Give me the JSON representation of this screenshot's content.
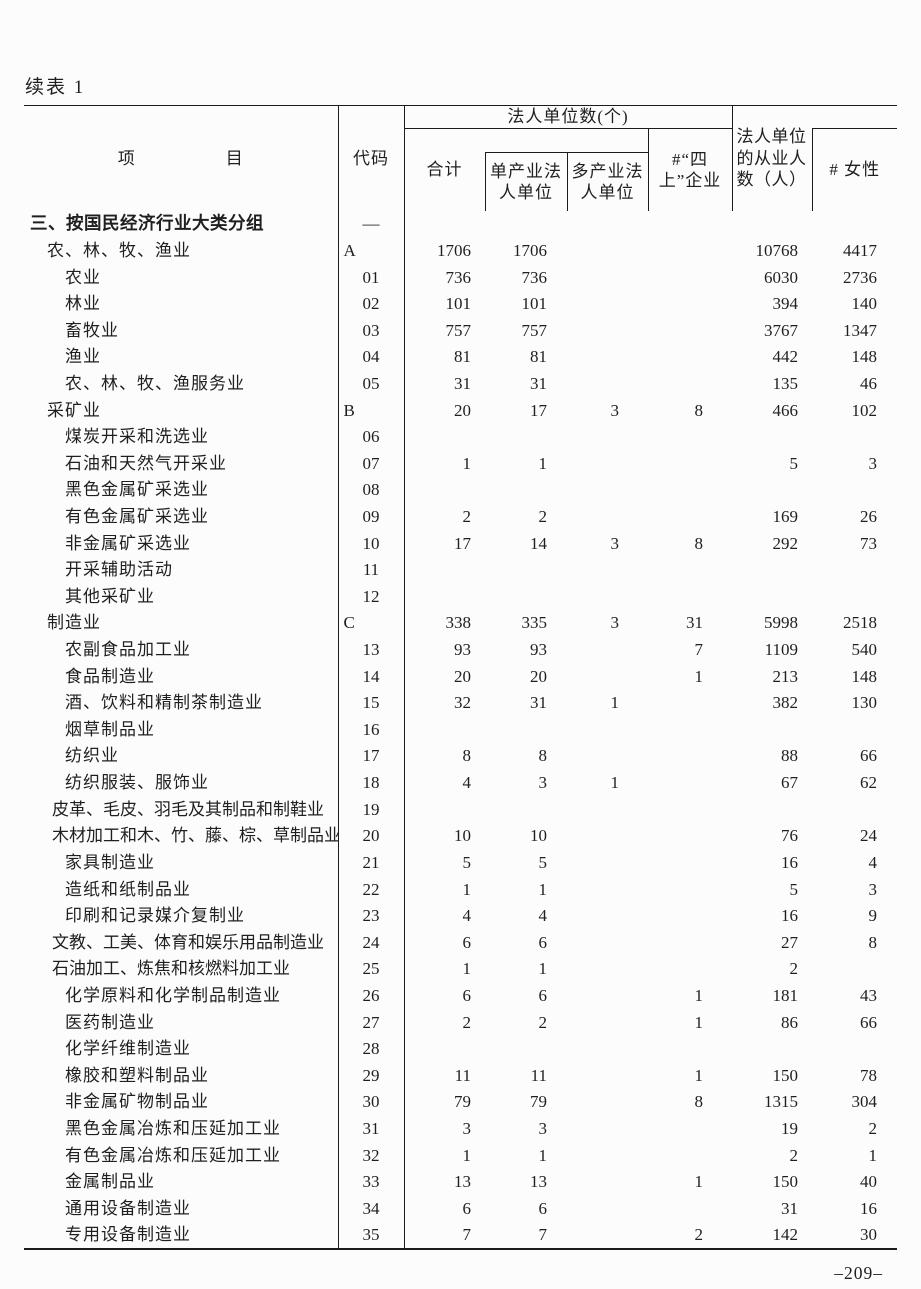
{
  "page": {
    "continued_label": "续表 1",
    "page_number": "–209–"
  },
  "colors": {
    "background": "#fcfcfc",
    "text": "#1f1f1f",
    "border": "#1c1c1c"
  },
  "table": {
    "header": {
      "item": "项　　　　　目",
      "code": "代码",
      "group": "法人单位数(个)",
      "total": "合计",
      "single": "单产业法人单位",
      "multi": "多产业法人单位",
      "four_above": "#“四上”企业",
      "employees": "法人单位的从业人数（人）",
      "female": "# 女性"
    },
    "rows": [
      {
        "label": "三、按国民经济行业大类分组",
        "level": 0,
        "bold": true,
        "long": false,
        "code": "––",
        "code_align": "center",
        "values": [
          "",
          "",
          "",
          "",
          "",
          ""
        ]
      },
      {
        "label": "农、林、牧、渔业",
        "level": 1,
        "bold": false,
        "long": false,
        "code": "A",
        "code_align": "left",
        "values": [
          "1706",
          "1706",
          "",
          "",
          "10768",
          "4417"
        ]
      },
      {
        "label": "农业",
        "level": 2,
        "bold": false,
        "long": false,
        "code": "01",
        "code_align": "center",
        "values": [
          "736",
          "736",
          "",
          "",
          "6030",
          "2736"
        ]
      },
      {
        "label": "林业",
        "level": 2,
        "bold": false,
        "long": false,
        "code": "02",
        "code_align": "center",
        "values": [
          "101",
          "101",
          "",
          "",
          "394",
          "140"
        ]
      },
      {
        "label": "畜牧业",
        "level": 2,
        "bold": false,
        "long": false,
        "code": "03",
        "code_align": "center",
        "values": [
          "757",
          "757",
          "",
          "",
          "3767",
          "1347"
        ]
      },
      {
        "label": "渔业",
        "level": 2,
        "bold": false,
        "long": false,
        "code": "04",
        "code_align": "center",
        "values": [
          "81",
          "81",
          "",
          "",
          "442",
          "148"
        ]
      },
      {
        "label": "农、林、牧、渔服务业",
        "level": 2,
        "bold": false,
        "long": false,
        "code": "05",
        "code_align": "center",
        "values": [
          "31",
          "31",
          "",
          "",
          "135",
          "46"
        ]
      },
      {
        "label": "采矿业",
        "level": 1,
        "bold": false,
        "long": false,
        "code": "B",
        "code_align": "left",
        "values": [
          "20",
          "17",
          "3",
          "8",
          "466",
          "102"
        ]
      },
      {
        "label": "煤炭开采和洗选业",
        "level": 2,
        "bold": false,
        "long": false,
        "code": "06",
        "code_align": "center",
        "values": [
          "",
          "",
          "",
          "",
          "",
          ""
        ]
      },
      {
        "label": "石油和天然气开采业",
        "level": 2,
        "bold": false,
        "long": false,
        "code": "07",
        "code_align": "center",
        "values": [
          "1",
          "1",
          "",
          "",
          "5",
          "3"
        ]
      },
      {
        "label": "黑色金属矿采选业",
        "level": 2,
        "bold": false,
        "long": false,
        "code": "08",
        "code_align": "center",
        "values": [
          "",
          "",
          "",
          "",
          "",
          ""
        ]
      },
      {
        "label": "有色金属矿采选业",
        "level": 2,
        "bold": false,
        "long": false,
        "code": "09",
        "code_align": "center",
        "values": [
          "2",
          "2",
          "",
          "",
          "169",
          "26"
        ]
      },
      {
        "label": "非金属矿采选业",
        "level": 2,
        "bold": false,
        "long": false,
        "code": "10",
        "code_align": "center",
        "values": [
          "17",
          "14",
          "3",
          "8",
          "292",
          "73"
        ]
      },
      {
        "label": "开采辅助活动",
        "level": 2,
        "bold": false,
        "long": false,
        "code": "11",
        "code_align": "center",
        "values": [
          "",
          "",
          "",
          "",
          "",
          ""
        ]
      },
      {
        "label": "其他采矿业",
        "level": 2,
        "bold": false,
        "long": false,
        "code": "12",
        "code_align": "center",
        "values": [
          "",
          "",
          "",
          "",
          "",
          ""
        ]
      },
      {
        "label": "制造业",
        "level": 1,
        "bold": false,
        "long": false,
        "code": "C",
        "code_align": "left",
        "values": [
          "338",
          "335",
          "3",
          "31",
          "5998",
          "2518"
        ]
      },
      {
        "label": "农副食品加工业",
        "level": 2,
        "bold": false,
        "long": false,
        "code": "13",
        "code_align": "center",
        "values": [
          "93",
          "93",
          "",
          "7",
          "1109",
          "540"
        ]
      },
      {
        "label": "食品制造业",
        "level": 2,
        "bold": false,
        "long": false,
        "code": "14",
        "code_align": "center",
        "values": [
          "20",
          "20",
          "",
          "1",
          "213",
          "148"
        ]
      },
      {
        "label": "酒、饮料和精制茶制造业",
        "level": 2,
        "bold": false,
        "long": false,
        "code": "15",
        "code_align": "center",
        "values": [
          "32",
          "31",
          "1",
          "",
          "382",
          "130"
        ]
      },
      {
        "label": "烟草制品业",
        "level": 2,
        "bold": false,
        "long": false,
        "code": "16",
        "code_align": "center",
        "values": [
          "",
          "",
          "",
          "",
          "",
          ""
        ]
      },
      {
        "label": "纺织业",
        "level": 2,
        "bold": false,
        "long": false,
        "code": "17",
        "code_align": "center",
        "values": [
          "8",
          "8",
          "",
          "",
          "88",
          "66"
        ]
      },
      {
        "label": "纺织服装、服饰业",
        "level": 2,
        "bold": false,
        "long": false,
        "code": "18",
        "code_align": "center",
        "values": [
          "4",
          "3",
          "1",
          "",
          "67",
          "62"
        ]
      },
      {
        "label": "皮革、毛皮、羽毛及其制品和制鞋业",
        "level": 2,
        "bold": false,
        "long": true,
        "code": "19",
        "code_align": "center",
        "values": [
          "",
          "",
          "",
          "",
          "",
          ""
        ]
      },
      {
        "label": "木材加工和木、竹、藤、棕、草制品业",
        "level": 2,
        "bold": false,
        "long": true,
        "code": "20",
        "code_align": "center",
        "values": [
          "10",
          "10",
          "",
          "",
          "76",
          "24"
        ]
      },
      {
        "label": "家具制造业",
        "level": 2,
        "bold": false,
        "long": false,
        "code": "21",
        "code_align": "center",
        "values": [
          "5",
          "5",
          "",
          "",
          "16",
          "4"
        ]
      },
      {
        "label": "造纸和纸制品业",
        "level": 2,
        "bold": false,
        "long": false,
        "code": "22",
        "code_align": "center",
        "values": [
          "1",
          "1",
          "",
          "",
          "5",
          "3"
        ]
      },
      {
        "label": "印刷和记录媒介复制业",
        "level": 2,
        "bold": false,
        "long": false,
        "code": "23",
        "code_align": "center",
        "values": [
          "4",
          "4",
          "",
          "",
          "16",
          "9"
        ]
      },
      {
        "label": "文教、工美、体育和娱乐用品制造业",
        "level": 2,
        "bold": false,
        "long": true,
        "code": "24",
        "code_align": "center",
        "values": [
          "6",
          "6",
          "",
          "",
          "27",
          "8"
        ]
      },
      {
        "label": "石油加工、炼焦和核燃料加工业",
        "level": 2,
        "bold": false,
        "long": true,
        "code": "25",
        "code_align": "center",
        "values": [
          "1",
          "1",
          "",
          "",
          "2",
          ""
        ]
      },
      {
        "label": "化学原料和化学制品制造业",
        "level": 2,
        "bold": false,
        "long": false,
        "code": "26",
        "code_align": "center",
        "values": [
          "6",
          "6",
          "",
          "1",
          "181",
          "43"
        ]
      },
      {
        "label": "医药制造业",
        "level": 2,
        "bold": false,
        "long": false,
        "code": "27",
        "code_align": "center",
        "values": [
          "2",
          "2",
          "",
          "1",
          "86",
          "66"
        ]
      },
      {
        "label": "化学纤维制造业",
        "level": 2,
        "bold": false,
        "long": false,
        "code": "28",
        "code_align": "center",
        "values": [
          "",
          "",
          "",
          "",
          "",
          ""
        ]
      },
      {
        "label": "橡胶和塑料制品业",
        "level": 2,
        "bold": false,
        "long": false,
        "code": "29",
        "code_align": "center",
        "values": [
          "11",
          "11",
          "",
          "1",
          "150",
          "78"
        ]
      },
      {
        "label": "非金属矿物制品业",
        "level": 2,
        "bold": false,
        "long": false,
        "code": "30",
        "code_align": "center",
        "values": [
          "79",
          "79",
          "",
          "8",
          "1315",
          "304"
        ]
      },
      {
        "label": "黑色金属冶炼和压延加工业",
        "level": 2,
        "bold": false,
        "long": false,
        "code": "31",
        "code_align": "center",
        "values": [
          "3",
          "3",
          "",
          "",
          "19",
          "2"
        ]
      },
      {
        "label": "有色金属冶炼和压延加工业",
        "level": 2,
        "bold": false,
        "long": false,
        "code": "32",
        "code_align": "center",
        "values": [
          "1",
          "1",
          "",
          "",
          "2",
          "1"
        ]
      },
      {
        "label": "金属制品业",
        "level": 2,
        "bold": false,
        "long": false,
        "code": "33",
        "code_align": "center",
        "values": [
          "13",
          "13",
          "",
          "1",
          "150",
          "40"
        ]
      },
      {
        "label": "通用设备制造业",
        "level": 2,
        "bold": false,
        "long": false,
        "code": "34",
        "code_align": "center",
        "values": [
          "6",
          "6",
          "",
          "",
          "31",
          "16"
        ]
      },
      {
        "label": "专用设备制造业",
        "level": 2,
        "bold": false,
        "long": false,
        "code": "35",
        "code_align": "center",
        "values": [
          "7",
          "7",
          "",
          "2",
          "142",
          "30"
        ]
      }
    ]
  }
}
